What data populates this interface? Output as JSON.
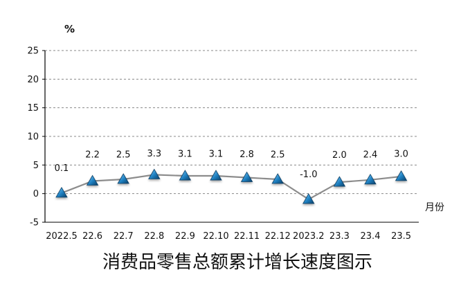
{
  "chart_data": {
    "type": "line",
    "title": "消费品零售总额累计增长速度图示",
    "ylabel": "%",
    "xlabel": "月份",
    "ylim": [
      -5,
      25
    ],
    "yticks": [
      -5,
      0,
      5,
      10,
      15,
      20,
      25
    ],
    "grid": "horizontal-dashed",
    "categories": [
      "2022.5",
      "22.6",
      "22.7",
      "22.8",
      "22.9",
      "22.10",
      "22.11",
      "22.12",
      "2023.2",
      "23.3",
      "23.4",
      "23.5"
    ],
    "values": [
      0.1,
      2.2,
      2.5,
      3.3,
      3.1,
      3.1,
      2.8,
      2.5,
      -1.0,
      2.0,
      2.4,
      3.0
    ],
    "labels": [
      "0.1",
      "2.2",
      "2.5",
      "3.3",
      "3.1",
      "3.1",
      "2.8",
      "2.5",
      "-1.0",
      "2.0",
      "2.4",
      "3.0"
    ],
    "colors": {
      "line": "#8c8c8c",
      "marker": "#1e7fc0",
      "marker_dark": "#0b3f66",
      "grid": "#888888",
      "axis": "#000000"
    }
  }
}
